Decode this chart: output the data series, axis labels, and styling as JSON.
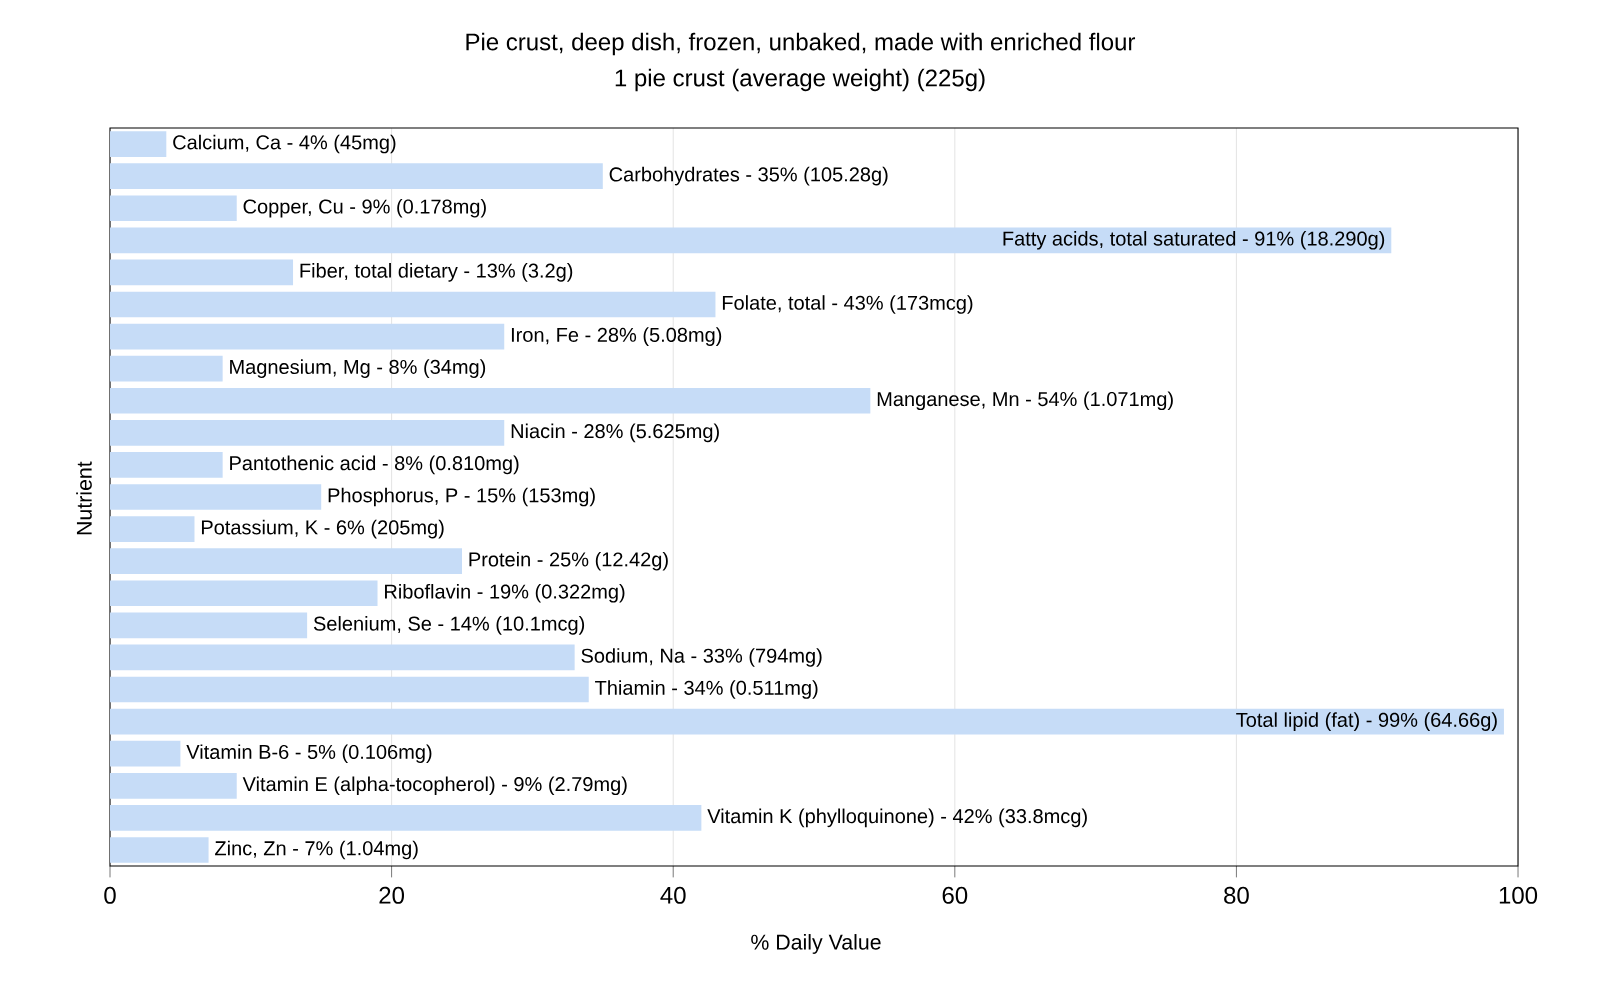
{
  "chart_data": {
    "type": "bar",
    "orientation": "horizontal",
    "title": "Pie crust, deep dish, frozen, unbaked, made with enriched flour",
    "subtitle": "1 pie crust (average weight) (225g)",
    "xlabel": "% Daily Value",
    "ylabel": "Nutrient",
    "categories": [
      null,
      null,
      null,
      null,
      null,
      null,
      null,
      null,
      null,
      null,
      null,
      null,
      null,
      null,
      null,
      null,
      null,
      null,
      null,
      null,
      null,
      null,
      null
    ],
    "values": [
      4,
      35,
      9,
      91,
      13,
      43,
      28,
      8,
      54,
      28,
      8,
      15,
      6,
      25,
      19,
      14,
      33,
      34,
      99,
      5,
      9,
      42,
      7
    ],
    "annotations": [
      {
        "text": "Calcium, Ca - 4% (45mg)",
        "x": 4
      },
      {
        "text": "Carbohydrates - 35% (105.28g)",
        "x": 35
      },
      {
        "text": "Copper, Cu - 9% (0.178mg)",
        "x": 9
      },
      {
        "text": "Fatty acids, total saturated - 91% (18.290g)",
        "x": 91
      },
      {
        "text": "Fiber, total dietary - 13% (3.2g)",
        "x": 13
      },
      {
        "text": "Folate, total - 43% (173mcg)",
        "x": 43
      },
      {
        "text": "Iron, Fe - 28% (5.08mg)",
        "x": 28
      },
      {
        "text": "Magnesium, Mg - 8% (34mg)",
        "x": 8
      },
      {
        "text": "Manganese, Mn - 54% (1.071mg)",
        "x": 54
      },
      {
        "text": "Niacin - 28% (5.625mg)",
        "x": 28
      },
      {
        "text": "Pantothenic acid - 8% (0.810mg)",
        "x": 8
      },
      {
        "text": "Phosphorus, P - 15% (153mg)",
        "x": 15
      },
      {
        "text": "Potassium, K - 6% (205mg)",
        "x": 6
      },
      {
        "text": "Protein - 25% (12.42g)",
        "x": 25
      },
      {
        "text": "Riboflavin - 19% (0.322mg)",
        "x": 19
      },
      {
        "text": "Selenium, Se - 14% (10.1mcg)",
        "x": 14
      },
      {
        "text": "Sodium, Na - 33% (794mg)",
        "x": 33
      },
      {
        "text": "Thiamin - 34% (0.511mg)",
        "x": 34
      },
      {
        "text": "Total lipid (fat) - 99% (64.66g)",
        "x": 99
      },
      {
        "text": "Vitamin B-6 - 5% (0.106mg)",
        "x": 5
      },
      {
        "text": "Vitamin E (alpha-tocopherol) - 9% (2.79mg)",
        "x": 9
      },
      {
        "text": "Vitamin K (phylloquinone) - 42% (33.8mcg)",
        "x": 42
      },
      {
        "text": "Zinc, Zn - 7% (1.04mg)",
        "x": 7
      }
    ],
    "color": "#c6dcf7",
    "xlim": [
      0,
      100
    ],
    "xticks": [
      0,
      20,
      40,
      60,
      80,
      100
    ],
    "grid": "x",
    "tick_labels": "x"
  }
}
